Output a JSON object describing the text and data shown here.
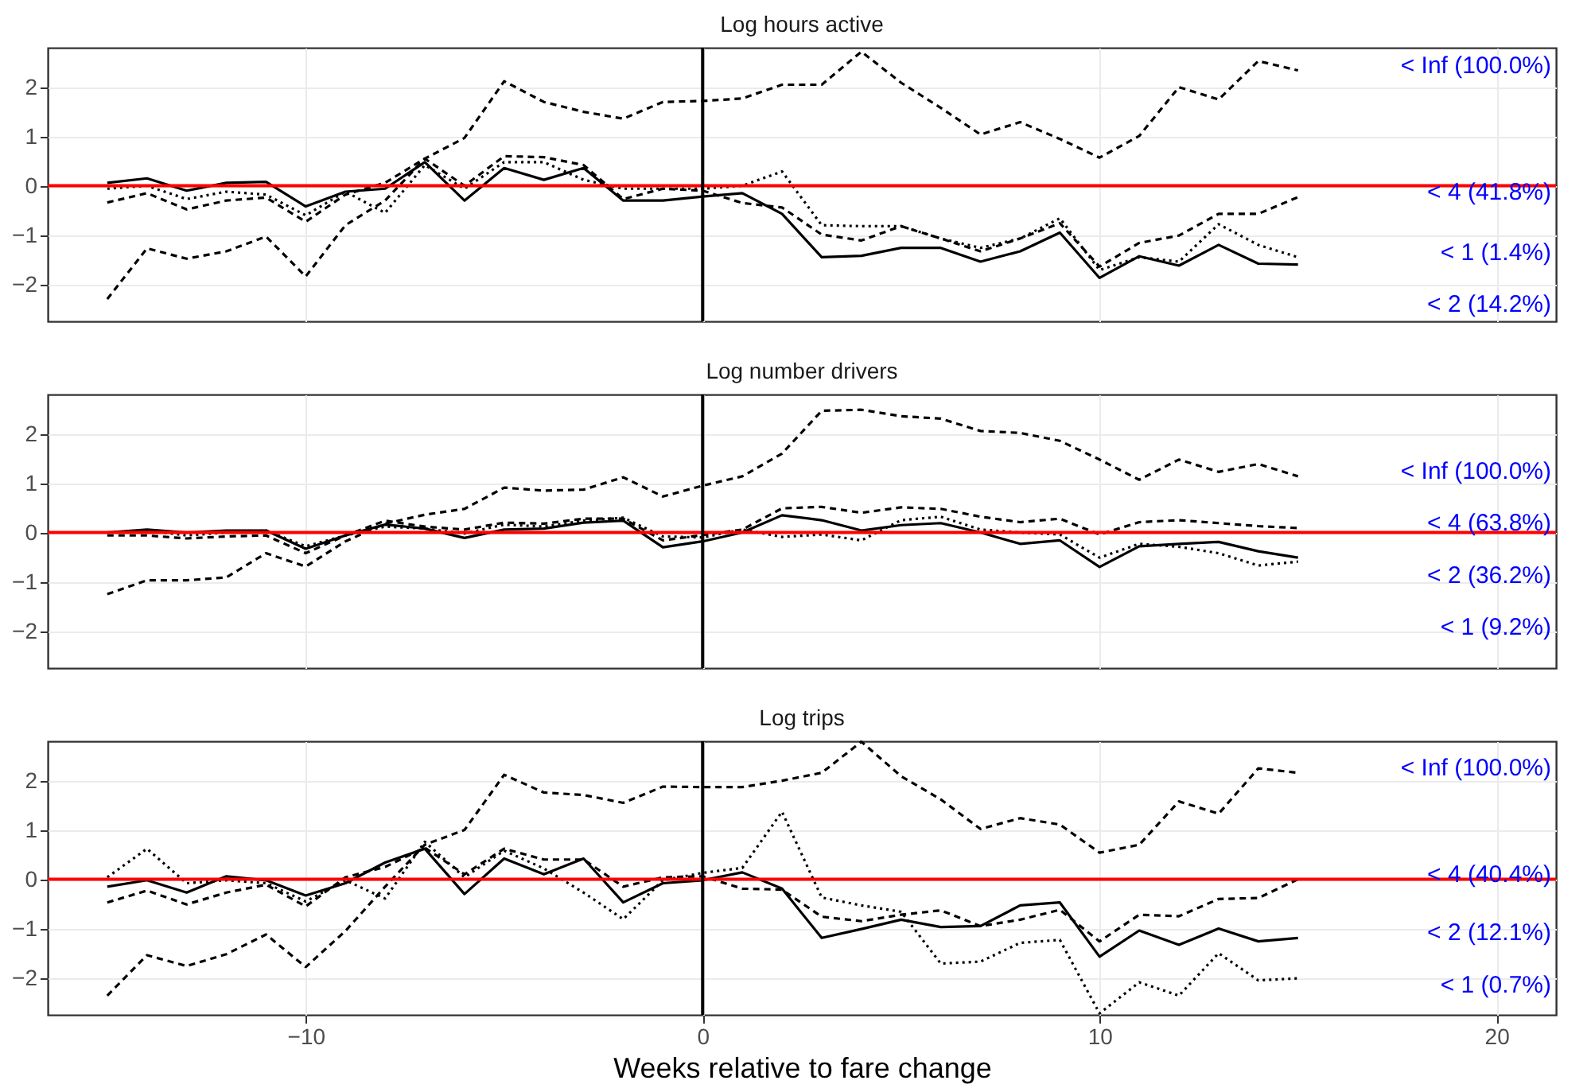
{
  "chart_data": [
    {
      "type": "line",
      "title": "Log hours active",
      "x": [
        -15,
        -14,
        -13,
        -12,
        -11,
        -10,
        -9,
        -8,
        -7,
        -6,
        -5,
        -4,
        -3,
        -2,
        -1,
        0,
        1,
        2,
        3,
        4,
        5,
        6,
        7,
        8,
        9,
        10,
        11,
        12,
        13,
        14,
        15
      ],
      "xlim": [
        -16.5,
        21.5
      ],
      "xticks": [
        -10,
        0,
        10,
        20
      ],
      "ylim": [
        -2.75,
        2.8
      ],
      "yticks": [
        -2,
        -1,
        0,
        1,
        2
      ],
      "grid": true,
      "tick_labels": "y",
      "series": [
        {
          "name": "< Inf (100.0%)",
          "color": "#000000",
          "line_style": "dashed",
          "values": [
            -2.3,
            -1.27,
            -1.48,
            -1.33,
            -1.03,
            -1.84,
            -0.8,
            -0.3,
            0.55,
            0.97,
            2.12,
            1.7,
            1.5,
            1.36,
            1.7,
            1.72,
            1.77,
            2.05,
            2.05,
            2.72,
            2.09,
            1.58,
            1.04,
            1.29,
            0.95,
            0.57,
            1.01,
            2.0,
            1.75,
            2.53,
            2.34
          ]
        },
        {
          "name": "< 4 (41.8%)",
          "color": "#000000",
          "line_style": "dashed",
          "values": [
            -0.34,
            -0.15,
            -0.48,
            -0.3,
            -0.24,
            -0.73,
            -0.18,
            0.06,
            0.55,
            0,
            0.6,
            0.58,
            0.42,
            -0.27,
            -0.06,
            -0.1,
            -0.35,
            -0.44,
            -0.99,
            -1.11,
            -0.82,
            -1.07,
            -1.33,
            -1.07,
            -0.76,
            -1.64,
            -1.16,
            -1.01,
            -0.57,
            -0.57,
            -0.23
          ]
        },
        {
          "name": "< 2 (14.2%)",
          "color": "#000000",
          "line_style": "solid",
          "values": [
            0.06,
            0.15,
            -0.1,
            0.06,
            0.08,
            -0.42,
            -0.12,
            -0.06,
            0.48,
            -0.3,
            0.36,
            0.12,
            0.36,
            -0.3,
            -0.3,
            -0.22,
            -0.15,
            -0.57,
            -1.45,
            -1.42,
            -1.26,
            -1.26,
            -1.54,
            -1.33,
            -0.95,
            -1.87,
            -1.43,
            -1.62,
            -1.2,
            -1.58,
            -1.6
          ]
        },
        {
          "name": "< 1 (1.4%)",
          "color": "#000000",
          "line_style": "dotted",
          "values": [
            -0.06,
            0,
            -0.27,
            -0.12,
            -0.18,
            -0.6,
            -0.12,
            -0.55,
            0.42,
            -0.06,
            0.48,
            0.48,
            0.12,
            -0.06,
            -0.06,
            -0.06,
            0,
            0.29,
            -0.8,
            -0.82,
            -0.82,
            -1.07,
            -1.26,
            -1.07,
            -0.66,
            -1.71,
            -1.45,
            -1.54,
            -0.78,
            -1.2,
            -1.45
          ]
        }
      ],
      "ref_lines": [
        {
          "axis": "y",
          "value": 0,
          "color": "#ff0000"
        },
        {
          "axis": "x",
          "value": 0,
          "color": "#000000"
        }
      ]
    },
    {
      "type": "line",
      "title": "Log number drivers",
      "x": [
        -15,
        -14,
        -13,
        -12,
        -11,
        -10,
        -9,
        -8,
        -7,
        -6,
        -5,
        -4,
        -3,
        -2,
        -1,
        0,
        1,
        2,
        3,
        4,
        5,
        6,
        7,
        8,
        9,
        10,
        11,
        12,
        13,
        14,
        15
      ],
      "xlim": [
        -16.5,
        21.5
      ],
      "xticks": [
        -10,
        0,
        10,
        20
      ],
      "ylim": [
        -2.75,
        2.8
      ],
      "yticks": [
        -2,
        -1,
        0,
        1,
        2
      ],
      "grid": true,
      "tick_labels": "y",
      "series": [
        {
          "name": "< Inf (100.0%)",
          "color": "#000000",
          "line_style": "dashed",
          "values": [
            -1.25,
            -0.97,
            -0.97,
            -0.91,
            -0.42,
            -0.69,
            -0.18,
            0.18,
            0.36,
            0.48,
            0.91,
            0.85,
            0.87,
            1.12,
            0.73,
            0.95,
            1.14,
            1.6,
            2.47,
            2.49,
            2.36,
            2.31,
            2.06,
            2.02,
            1.86,
            1.48,
            1.07,
            1.48,
            1.23,
            1.39,
            1.14
          ]
        },
        {
          "name": "< 4 (63.8%)",
          "color": "#000000",
          "line_style": "dashed",
          "values": [
            -0.06,
            -0.06,
            -0.12,
            -0.08,
            -0.06,
            -0.42,
            -0.06,
            0.24,
            0.12,
            0.06,
            0.2,
            0.18,
            0.28,
            0.28,
            -0.16,
            -0.05,
            0.06,
            0.49,
            0.52,
            0.4,
            0.51,
            0.48,
            0.32,
            0.21,
            0.28,
            -0.04,
            0.21,
            0.25,
            0.19,
            0.13,
            0.09
          ]
        },
        {
          "name": "< 2 (36.2%)",
          "color": "#000000",
          "line_style": "solid",
          "values": [
            0,
            0.06,
            0,
            0.04,
            0.04,
            -0.33,
            -0.06,
            0.16,
            0.08,
            -0.11,
            0.06,
            0.08,
            0.2,
            0.24,
            -0.3,
            -0.18,
            0,
            0.35,
            0.25,
            0.04,
            0.15,
            0.19,
            0,
            -0.23,
            -0.16,
            -0.7,
            -0.28,
            -0.23,
            -0.19,
            -0.38,
            -0.51
          ]
        },
        {
          "name": "< 1 (9.2%)",
          "color": "#000000",
          "line_style": "dotted",
          "values": [
            0,
            0.04,
            -0.06,
            0,
            0.04,
            -0.28,
            -0.06,
            0.12,
            0.08,
            -0.02,
            0.16,
            0.12,
            0.24,
            0.3,
            -0.08,
            -0.1,
            0.06,
            -0.09,
            -0.04,
            -0.16,
            0.25,
            0.32,
            0.06,
            0,
            -0.04,
            -0.51,
            -0.23,
            -0.29,
            -0.42,
            -0.67,
            -0.59
          ]
        }
      ],
      "ref_lines": [
        {
          "axis": "y",
          "value": 0,
          "color": "#ff0000"
        },
        {
          "axis": "x",
          "value": 0,
          "color": "#000000"
        }
      ]
    },
    {
      "type": "line",
      "title": "Log trips",
      "xlabel": "Weeks relative to fare change",
      "x": [
        -15,
        -14,
        -13,
        -12,
        -11,
        -10,
        -9,
        -8,
        -7,
        -6,
        -5,
        -4,
        -3,
        -2,
        -1,
        0,
        1,
        2,
        3,
        4,
        5,
        6,
        7,
        8,
        9,
        10,
        11,
        12,
        13,
        14,
        15
      ],
      "xlim": [
        -16.5,
        21.5
      ],
      "xticks": [
        -10,
        0,
        10,
        20
      ],
      "ylim": [
        -2.75,
        2.8
      ],
      "yticks": [
        -2,
        -1,
        0,
        1,
        2
      ],
      "grid": true,
      "series": [
        {
          "name": "< Inf (100.0%)",
          "color": "#000000",
          "line_style": "dashed",
          "values": [
            -2.36,
            -1.54,
            -1.76,
            -1.52,
            -1.12,
            -1.78,
            -1.05,
            -0.15,
            0.7,
            1.0,
            2.12,
            1.76,
            1.71,
            1.55,
            1.88,
            1.87,
            1.87,
            2.0,
            2.16,
            2.79,
            2.09,
            1.62,
            1.02,
            1.24,
            1.11,
            0.54,
            0.7,
            1.58,
            1.33,
            2.25,
            2.16
          ]
        },
        {
          "name": "< 4 (40.4%)",
          "color": "#000000",
          "line_style": "dashed",
          "values": [
            -0.47,
            -0.23,
            -0.51,
            -0.27,
            -0.11,
            -0.55,
            0.04,
            0.25,
            0.64,
            0.1,
            0.62,
            0.4,
            0.4,
            -0.15,
            0.04,
            0.06,
            -0.19,
            -0.21,
            -0.76,
            -0.85,
            -0.72,
            -0.63,
            -0.95,
            -0.82,
            -0.62,
            -1.26,
            -0.72,
            -0.75,
            -0.4,
            -0.38,
            0
          ]
        },
        {
          "name": "< 2 (12.1%)",
          "color": "#000000",
          "line_style": "solid",
          "values": [
            -0.15,
            -0.02,
            -0.27,
            0.06,
            -0.02,
            -0.33,
            -0.08,
            0.34,
            0.62,
            -0.3,
            0.42,
            0.1,
            0.42,
            -0.47,
            -0.08,
            -0.02,
            0.14,
            -0.19,
            -1.19,
            -1.01,
            -0.82,
            -0.97,
            -0.95,
            -0.53,
            -0.47,
            -1.57,
            -1.04,
            -1.33,
            -1.0,
            -1.26,
            -1.19
          ]
        },
        {
          "name": "< 1 (0.7%)",
          "color": "#000000",
          "line_style": "dotted",
          "values": [
            0.04,
            0.62,
            -0.08,
            -0.02,
            -0.08,
            -0.45,
            -0.02,
            -0.39,
            0.76,
            0.04,
            0.58,
            0.22,
            -0.27,
            -0.81,
            -0.02,
            0.13,
            0.23,
            1.37,
            -0.37,
            -0.53,
            -0.66,
            -1.71,
            -1.67,
            -1.29,
            -1.23,
            -2.72,
            -2.09,
            -2.36,
            -1.5,
            -2.05,
            -2.01
          ]
        }
      ],
      "ref_lines": [
        {
          "axis": "y",
          "value": 0,
          "color": "#ff0000"
        },
        {
          "axis": "x",
          "value": 0,
          "color": "#000000"
        }
      ]
    }
  ]
}
